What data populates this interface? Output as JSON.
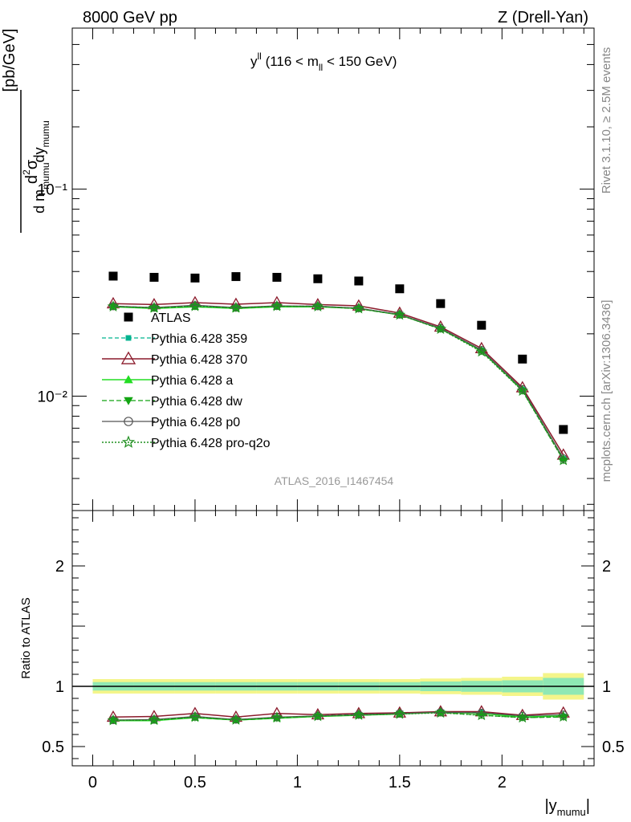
{
  "header": {
    "left": "8000 GeV pp",
    "right": "Z (Drell-Yan)",
    "side_top": "Rivet 3.1.10, ≥ 2.5M events",
    "side_bottom": "mcplots.cern.ch [arXiv:1306.3436]",
    "watermark": "ATLAS_2016_I1467454"
  },
  "annotation": {
    "main": "y",
    "sup": "ll",
    "rest_a": " (116 < m",
    "sub": "ll",
    "rest_b": " < 150 GeV)"
  },
  "axes": {
    "ylabel_main": "d²σ / d m_mumu dy_mumu [pb/GeV]",
    "ylabel_ratio": "Ratio to ATLAS",
    "xlabel": "|y_mumu|"
  },
  "colors": {
    "ATLAS": "#000000",
    "p359": "#00b38f",
    "p370": "#8b1a2b",
    "pa": "#22dd22",
    "pdw": "#13a513",
    "pp0": "#555555",
    "pq2o": "#1f8f1f",
    "band_outer": "#f4f58a",
    "band_inner": "#8fe8b4"
  },
  "chart_data": [
    {
      "type": "scatter",
      "title": "",
      "xlabel": "|y_mumu|",
      "ylabel": "d²σ/dm_mumu dy_mumu [pb/GeV]",
      "log_y": true,
      "xlim": [
        -0.1,
        2.45
      ],
      "ylim": [
        0.0028,
        0.6
      ],
      "x_ticks": [
        "0",
        "0.5",
        "1",
        "1.5",
        "2"
      ],
      "y_ticks": [
        "10⁻²",
        "10⁻¹"
      ],
      "legend_position": "center-left",
      "x": [
        0.1,
        0.3,
        0.5,
        0.7,
        0.9,
        1.1,
        1.3,
        1.5,
        1.7,
        1.9,
        2.1,
        2.3
      ],
      "series": [
        {
          "name": "ATLAS",
          "style": "data",
          "values": [
            0.038,
            0.0375,
            0.0372,
            0.0378,
            0.0375,
            0.0369,
            0.036,
            0.033,
            0.028,
            0.022,
            0.0151,
            0.0069
          ]
        },
        {
          "name": "Pythia 6.428 359",
          "style": "square-dash",
          "values": [
            0.0272,
            0.0268,
            0.0273,
            0.0268,
            0.0272,
            0.0272,
            0.0266,
            0.0248,
            0.0213,
            0.0167,
            0.0108,
            0.005
          ]
        },
        {
          "name": "Pythia 6.428 370",
          "style": "triangle-open",
          "values": [
            0.028,
            0.0277,
            0.0283,
            0.0278,
            0.0283,
            0.0277,
            0.0273,
            0.0252,
            0.0216,
            0.017,
            0.011,
            0.0052
          ]
        },
        {
          "name": "Pythia 6.428 a",
          "style": "triangle-solid",
          "values": [
            0.027,
            0.0265,
            0.027,
            0.0265,
            0.027,
            0.027,
            0.0265,
            0.0247,
            0.0212,
            0.0166,
            0.0107,
            0.005
          ]
        },
        {
          "name": "Pythia 6.428 dw",
          "style": "triangle-down-dash",
          "values": [
            0.0271,
            0.0266,
            0.0271,
            0.0266,
            0.0271,
            0.0271,
            0.0264,
            0.0247,
            0.0211,
            0.0165,
            0.0106,
            0.0049
          ]
        },
        {
          "name": "Pythia 6.428 p0",
          "style": "circle-open",
          "values": [
            0.0272,
            0.0268,
            0.0275,
            0.0268,
            0.0273,
            0.0272,
            0.0266,
            0.0248,
            0.0213,
            0.0167,
            0.0108,
            0.005
          ]
        },
        {
          "name": "Pythia 6.428 pro-q2o",
          "style": "star-dot",
          "values": [
            0.0271,
            0.0267,
            0.0272,
            0.0267,
            0.0272,
            0.0271,
            0.0265,
            0.0247,
            0.0211,
            0.0164,
            0.0106,
            0.0049
          ]
        }
      ]
    },
    {
      "type": "scatter",
      "title": "",
      "xlabel": "|y_mumu|",
      "ylabel": "Ratio to ATLAS",
      "xlim": [
        -0.1,
        2.45
      ],
      "ylim": [
        0.34,
        2.46
      ],
      "y_ticks": [
        "0.5",
        "1",
        "2"
      ],
      "x": [
        0.1,
        0.3,
        0.5,
        0.7,
        0.9,
        1.1,
        1.3,
        1.5,
        1.7,
        1.9,
        2.1,
        2.3
      ],
      "band_outer": [
        0.06,
        0.06,
        0.06,
        0.06,
        0.06,
        0.06,
        0.06,
        0.06,
        0.065,
        0.07,
        0.08,
        0.11
      ],
      "band_inner": [
        0.035,
        0.035,
        0.035,
        0.035,
        0.035,
        0.035,
        0.035,
        0.035,
        0.04,
        0.045,
        0.05,
        0.07
      ],
      "series": [
        {
          "name": "Pythia 6.428 359",
          "style": "square-dash",
          "values": [
            0.72,
            0.72,
            0.745,
            0.725,
            0.74,
            0.755,
            0.77,
            0.772,
            0.79,
            0.785,
            0.745,
            0.755
          ]
        },
        {
          "name": "Pythia 6.428 370",
          "style": "triangle-open",
          "values": [
            0.745,
            0.75,
            0.775,
            0.745,
            0.775,
            0.765,
            0.775,
            0.78,
            0.79,
            0.79,
            0.76,
            0.78
          ]
        },
        {
          "name": "Pythia 6.428 a",
          "style": "triangle-solid",
          "values": [
            0.715,
            0.715,
            0.74,
            0.72,
            0.735,
            0.75,
            0.76,
            0.77,
            0.785,
            0.775,
            0.745,
            0.755
          ]
        },
        {
          "name": "Pythia 6.428 dw",
          "style": "triangle-down-dash",
          "values": [
            0.718,
            0.72,
            0.74,
            0.72,
            0.735,
            0.752,
            0.76,
            0.772,
            0.782,
            0.76,
            0.74,
            0.745
          ]
        },
        {
          "name": "Pythia 6.428 p0",
          "style": "circle-open",
          "values": [
            0.72,
            0.725,
            0.75,
            0.725,
            0.745,
            0.755,
            0.765,
            0.775,
            0.785,
            0.78,
            0.755,
            0.765
          ]
        },
        {
          "name": "Pythia 6.428 pro-q2o",
          "style": "star-dot",
          "values": [
            0.718,
            0.72,
            0.745,
            0.722,
            0.74,
            0.752,
            0.762,
            0.77,
            0.78,
            0.76,
            0.74,
            0.748
          ]
        }
      ]
    }
  ]
}
